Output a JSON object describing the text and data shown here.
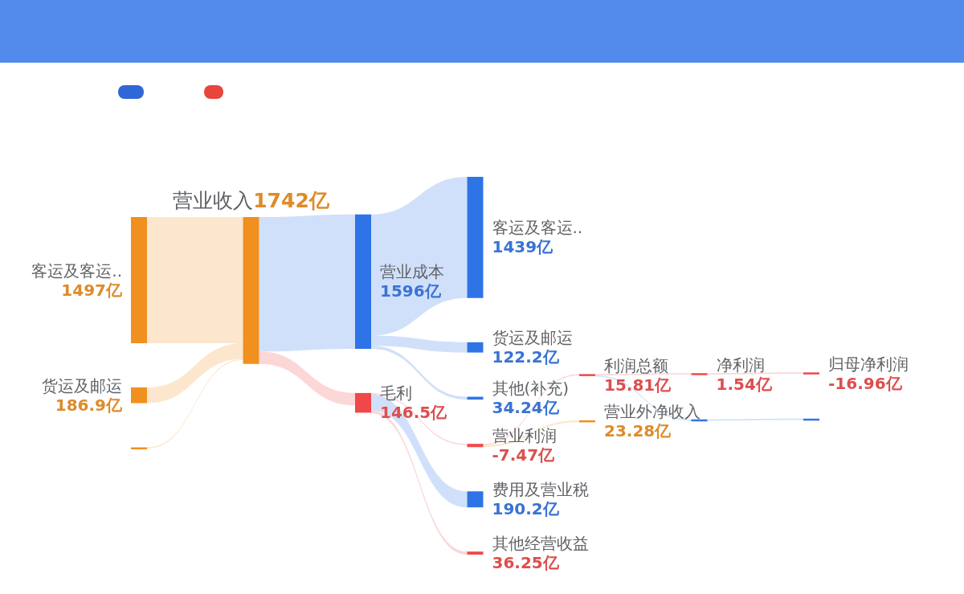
{
  "chart_data": {
    "type": "other",
    "categories": [
      "客运及客运..",
      "货运及邮运",
      null,
      "营业收入",
      "营业成本",
      "毛利",
      "客运及客运..",
      "货运及邮运",
      "其他(补充)",
      "营业利润",
      "费用及营业税",
      "其他经营收益",
      "利润总额",
      "营业外净收入",
      "净利润",
      null,
      "归母净利润",
      null
    ],
    "values": [
      1497,
      186.9,
      null,
      1742,
      1596,
      146.5,
      1439,
      122.2,
      34.24,
      -7.47,
      190.2,
      36.25,
      15.81,
      23.28,
      1.54,
      null,
      -16.96,
      null
    ],
    "value_labels": [
      "1497亿",
      "186.9亿",
      null,
      "1742亿",
      "1596亿",
      "146.5亿",
      "1439亿",
      "122.2亿",
      "34.24亿",
      "-7.47亿",
      "190.2亿",
      "36.25亿",
      "15.81亿",
      "23.28亿",
      "1.54亿",
      null,
      "-16.96亿",
      null
    ],
    "colors": [
      "#f0901f",
      "#f0901f",
      "#f0901f",
      "#f0901f",
      "#2f74e6",
      "#f04848",
      "#2f74e6",
      "#2f74e6",
      "#2f74e6",
      "#f04848",
      "#2f74e6",
      "#f04848",
      "#f04848",
      "#f0901f",
      "#f04848",
      "#2f74e6",
      "#f04848",
      "#2f74e6"
    ]
  }
}
